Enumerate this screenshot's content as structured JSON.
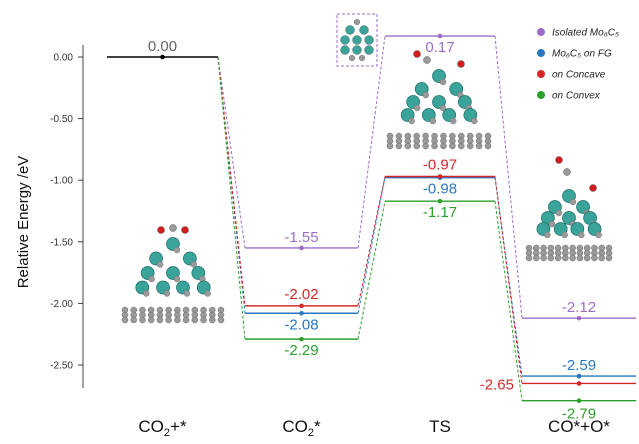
{
  "chart_data": {
    "type": "line",
    "ylabel": "Relative Energy /eV",
    "ylim": [
      -2.85,
      0.25
    ],
    "yticks": [
      {
        "value": 0.0,
        "label": "0.00"
      },
      {
        "value": -0.5,
        "label": "-0.50"
      },
      {
        "value": -1.0,
        "label": "-1.00"
      },
      {
        "value": -1.5,
        "label": "-1.50"
      },
      {
        "value": -2.0,
        "label": "-2.00"
      },
      {
        "value": -2.5,
        "label": "-2.50"
      }
    ],
    "categories": [
      {
        "sub": [
          "CO",
          "2",
          "+*"
        ]
      },
      {
        "sub": [
          "CO",
          "2",
          "*"
        ]
      },
      {
        "sub": [
          "TS"
        ]
      },
      {
        "sub": [
          "CO*+O*"
        ]
      }
    ],
    "initial": {
      "value": 0.0,
      "label": "0.00",
      "color": "#000000"
    },
    "series": [
      {
        "name": "Isolated Mo₆C₅",
        "color": "#9b6ec8",
        "values": [
          0.0,
          -1.55,
          0.17,
          -2.12
        ],
        "labels": [
          "0.00",
          "-1.55",
          "0.17",
          "-2.12"
        ]
      },
      {
        "name": "Mo₆C₅ on FG",
        "color": "#2878c0",
        "values": [
          0.0,
          -2.08,
          -0.98,
          -2.59
        ],
        "labels": [
          "0.00",
          "-2.08",
          "-0.98",
          "-2.59"
        ]
      },
      {
        "name": "on Concave",
        "color": "#d62728",
        "values": [
          0.0,
          -2.02,
          -0.97,
          -2.65
        ],
        "labels": [
          "0.00",
          "-2.02",
          "-0.97",
          "-2.65"
        ]
      },
      {
        "name": "on Convex",
        "color": "#2ca02c",
        "values": [
          0.0,
          -2.29,
          -1.17,
          -2.79
        ],
        "labels": [
          "0.00",
          "-2.29",
          "-1.17",
          "-2.79"
        ]
      }
    ],
    "legend_position": "top-right"
  }
}
